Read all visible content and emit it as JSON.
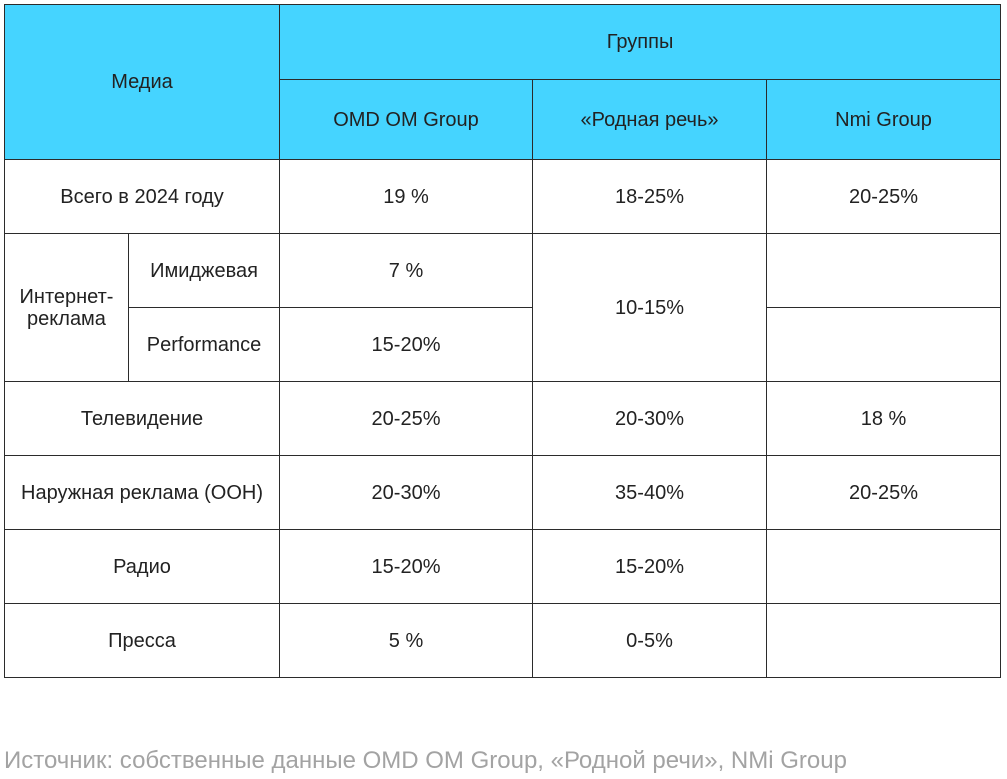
{
  "header": {
    "media": "Медиа",
    "groups": "Группы",
    "columns": [
      "OMD OM Group",
      "«Родная речь»",
      "Nmi Group"
    ]
  },
  "rows": {
    "total": {
      "label": "Всего в 2024 году",
      "omd": "19 %",
      "rodnaya": "18-25%",
      "nmi": "20-25%"
    },
    "internet": {
      "label": "Интернет-реклама",
      "image": {
        "label": "Имиджевая",
        "omd": "7 %",
        "nmi": ""
      },
      "performance": {
        "label": "Performance",
        "omd": "15-20%",
        "nmi": ""
      },
      "rodnaya": "10-15%"
    },
    "tv": {
      "label": "Телевидение",
      "omd": "20-25%",
      "rodnaya": "20-30%",
      "nmi": "18 %"
    },
    "ooh": {
      "label": "Наружная реклама (OOH)",
      "omd": "20-30%",
      "rodnaya": "35-40%",
      "nmi": "20-25%"
    },
    "radio": {
      "label": "Радио",
      "omd": "15-20%",
      "rodnaya": "15-20%",
      "nmi": ""
    },
    "press": {
      "label": "Пресса",
      "omd": "5 %",
      "rodnaya": "0-5%",
      "nmi": ""
    }
  },
  "source": "Источник: собственные данные OMD OM Group, «Родной речи», NMi Group",
  "colors": {
    "header_background": "#45d4ff",
    "border": "#2b2b2b",
    "source_text": "#a3a3a3"
  }
}
